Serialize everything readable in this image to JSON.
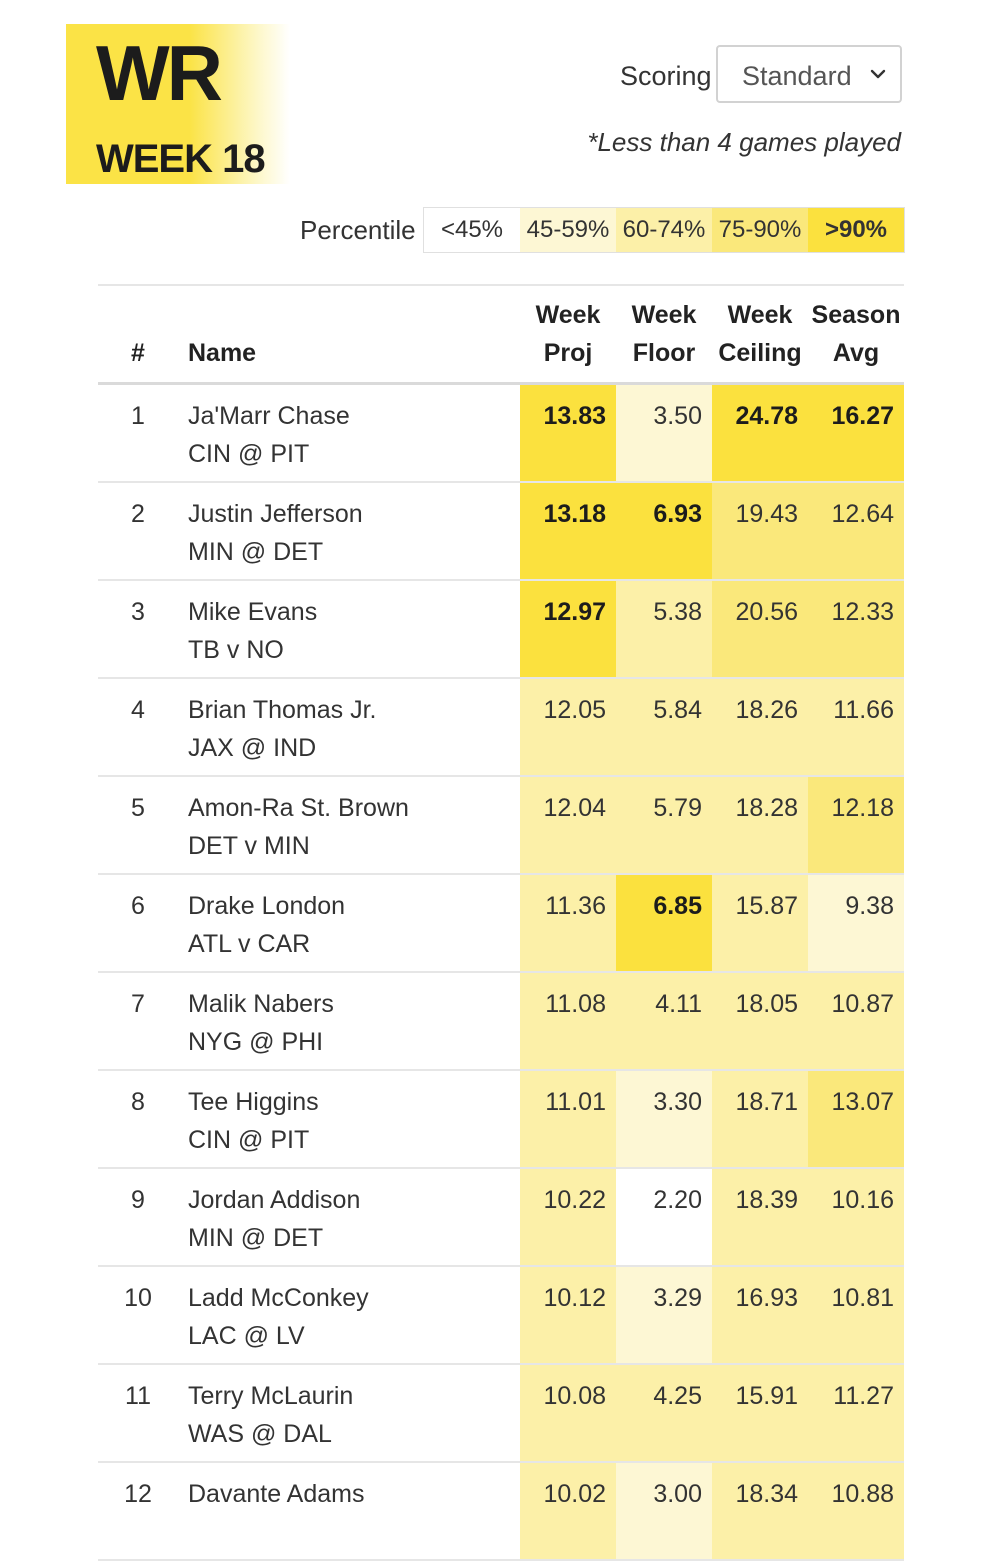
{
  "header": {
    "position": "WR",
    "week": "WEEK 18"
  },
  "scoring": {
    "label": "Scoring",
    "selected": "Standard"
  },
  "note": "*Less than 4 games played",
  "percentile": {
    "label": "Percentile",
    "buckets": [
      {
        "label": "<45%",
        "color": "#ffffff"
      },
      {
        "label": "45-59%",
        "color": "#fdf7d4"
      },
      {
        "label": "60-74%",
        "color": "#fcf0a8"
      },
      {
        "label": "75-90%",
        "color": "#fae87b"
      },
      {
        "label": ">90%",
        "color": "#fbe13e"
      }
    ]
  },
  "columns": {
    "rank": "#",
    "name": "Name",
    "proj": [
      "Week",
      "Proj"
    ],
    "floor": [
      "Week",
      "Floor"
    ],
    "ceiling": [
      "Week",
      "Ceiling"
    ],
    "avg": [
      "Season",
      "Avg"
    ]
  },
  "players": [
    {
      "rank": "1",
      "name": "Ja'Marr Chase",
      "game": "CIN @ PIT",
      "proj": "13.83",
      "floor": "3.50",
      "ceiling": "24.78",
      "avg": "16.27",
      "tiers": [
        4,
        1,
        4,
        4
      ]
    },
    {
      "rank": "2",
      "name": "Justin Jefferson",
      "game": "MIN @ DET",
      "proj": "13.18",
      "floor": "6.93",
      "ceiling": "19.43",
      "avg": "12.64",
      "tiers": [
        4,
        4,
        3,
        3
      ]
    },
    {
      "rank": "3",
      "name": "Mike Evans",
      "game": "TB v NO",
      "proj": "12.97",
      "floor": "5.38",
      "ceiling": "20.56",
      "avg": "12.33",
      "tiers": [
        4,
        2,
        3,
        3
      ]
    },
    {
      "rank": "4",
      "name": "Brian Thomas Jr.",
      "game": "JAX @ IND",
      "proj": "12.05",
      "floor": "5.84",
      "ceiling": "18.26",
      "avg": "11.66",
      "tiers": [
        2,
        2,
        2,
        2
      ]
    },
    {
      "rank": "5",
      "name": "Amon-Ra St. Brown",
      "game": "DET v MIN",
      "proj": "12.04",
      "floor": "5.79",
      "ceiling": "18.28",
      "avg": "12.18",
      "tiers": [
        2,
        2,
        2,
        3
      ]
    },
    {
      "rank": "6",
      "name": "Drake London",
      "game": "ATL v CAR",
      "proj": "11.36",
      "floor": "6.85",
      "ceiling": "15.87",
      "avg": "9.38",
      "tiers": [
        2,
        4,
        2,
        1
      ]
    },
    {
      "rank": "7",
      "name": "Malik Nabers",
      "game": "NYG @ PHI",
      "proj": "11.08",
      "floor": "4.11",
      "ceiling": "18.05",
      "avg": "10.87",
      "tiers": [
        2,
        2,
        2,
        2
      ]
    },
    {
      "rank": "8",
      "name": "Tee Higgins",
      "game": "CIN @ PIT",
      "proj": "11.01",
      "floor": "3.30",
      "ceiling": "18.71",
      "avg": "13.07",
      "tiers": [
        2,
        1,
        2,
        3
      ]
    },
    {
      "rank": "9",
      "name": "Jordan Addison",
      "game": "MIN @ DET",
      "proj": "10.22",
      "floor": "2.20",
      "ceiling": "18.39",
      "avg": "10.16",
      "tiers": [
        2,
        0,
        2,
        2
      ]
    },
    {
      "rank": "10",
      "name": "Ladd McConkey",
      "game": "LAC @ LV",
      "proj": "10.12",
      "floor": "3.29",
      "ceiling": "16.93",
      "avg": "10.81",
      "tiers": [
        2,
        1,
        2,
        2
      ]
    },
    {
      "rank": "11",
      "name": "Terry McLaurin",
      "game": "WAS @ DAL",
      "proj": "10.08",
      "floor": "4.25",
      "ceiling": "15.91",
      "avg": "11.27",
      "tiers": [
        2,
        2,
        2,
        2
      ]
    },
    {
      "rank": "12",
      "name": "Davante Adams",
      "game": "",
      "proj": "10.02",
      "floor": "3.00",
      "ceiling": "18.34",
      "avg": "10.88",
      "tiers": [
        2,
        1,
        2,
        2
      ]
    }
  ]
}
